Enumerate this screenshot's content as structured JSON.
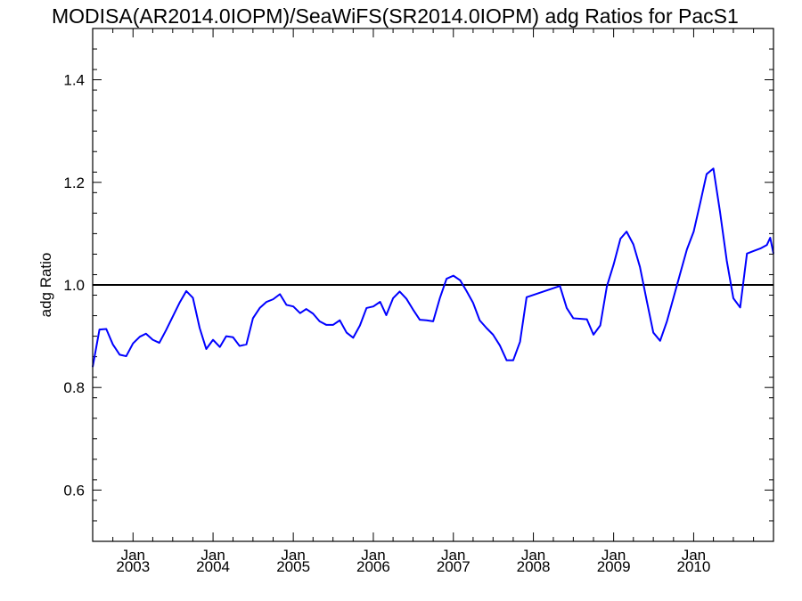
{
  "chart_data": {
    "type": "line",
    "title": "MODISA(AR2014.0IOPM)/SeaWiFS(SR2014.0IOPM)  adg Ratios for PacS1",
    "xlabel": "",
    "ylabel": "adg Ratio",
    "ylim": [
      0.5,
      1.5
    ],
    "xlim": [
      "2002-07-01",
      "2010-12-31"
    ],
    "yticks": [
      "0.6",
      "0.8",
      "1.0",
      "1.2",
      "1.4"
    ],
    "xticks": [
      {
        "month": "Jan",
        "year": "2003",
        "date": "2003-01-01"
      },
      {
        "month": "Jan",
        "year": "2004",
        "date": "2004-01-01"
      },
      {
        "month": "Jan",
        "year": "2005",
        "date": "2005-01-01"
      },
      {
        "month": "Jan",
        "year": "2006",
        "date": "2006-01-01"
      },
      {
        "month": "Jan",
        "year": "2007",
        "date": "2007-01-01"
      },
      {
        "month": "Jan",
        "year": "2008",
        "date": "2008-01-01"
      },
      {
        "month": "Jan",
        "year": "2009",
        "date": "2009-01-01"
      },
      {
        "month": "Jan",
        "year": "2010",
        "date": "2010-01-01"
      }
    ],
    "reference_line": {
      "y": 1.0,
      "color": "#000000"
    },
    "grid": false,
    "series": [
      {
        "color": "#0000ff",
        "points": [
          [
            "2002-07-01",
            0.84
          ],
          [
            "2002-08-01",
            0.913
          ],
          [
            "2002-09-01",
            0.914
          ],
          [
            "2002-10-01",
            0.884
          ],
          [
            "2002-11-01",
            0.864
          ],
          [
            "2002-12-01",
            0.861
          ],
          [
            "2003-01-01",
            0.886
          ],
          [
            "2003-02-01",
            0.899
          ],
          [
            "2003-03-01",
            0.905
          ],
          [
            "2003-04-01",
            0.893
          ],
          [
            "2003-05-01",
            0.887
          ],
          [
            "2003-06-01",
            0.912
          ],
          [
            "2003-07-01",
            0.938
          ],
          [
            "2003-08-01",
            0.965
          ],
          [
            "2003-09-01",
            0.988
          ],
          [
            "2003-10-01",
            0.975
          ],
          [
            "2003-11-01",
            0.916
          ],
          [
            "2003-12-01",
            0.875
          ],
          [
            "2004-01-01",
            0.893
          ],
          [
            "2004-02-01",
            0.879
          ],
          [
            "2004-03-01",
            0.9
          ],
          [
            "2004-04-01",
            0.898
          ],
          [
            "2004-05-01",
            0.881
          ],
          [
            "2004-06-01",
            0.884
          ],
          [
            "2004-07-01",
            0.935
          ],
          [
            "2004-08-01",
            0.955
          ],
          [
            "2004-09-01",
            0.967
          ],
          [
            "2004-10-01",
            0.972
          ],
          [
            "2004-11-01",
            0.982
          ],
          [
            "2004-12-01",
            0.961
          ],
          [
            "2005-01-01",
            0.958
          ],
          [
            "2005-02-01",
            0.945
          ],
          [
            "2005-03-01",
            0.953
          ],
          [
            "2005-04-01",
            0.944
          ],
          [
            "2005-05-01",
            0.929
          ],
          [
            "2005-06-01",
            0.922
          ],
          [
            "2005-07-01",
            0.922
          ],
          [
            "2005-08-01",
            0.931
          ],
          [
            "2005-09-01",
            0.907
          ],
          [
            "2005-10-01",
            0.897
          ],
          [
            "2005-11-01",
            0.921
          ],
          [
            "2005-12-01",
            0.955
          ],
          [
            "2006-01-01",
            0.958
          ],
          [
            "2006-02-01",
            0.967
          ],
          [
            "2006-03-01",
            0.941
          ],
          [
            "2006-04-01",
            0.974
          ],
          [
            "2006-05-01",
            0.987
          ],
          [
            "2006-06-01",
            0.973
          ],
          [
            "2006-07-01",
            0.952
          ],
          [
            "2006-08-01",
            0.932
          ],
          [
            "2006-09-01",
            0.931
          ],
          [
            "2006-10-01",
            0.929
          ],
          [
            "2006-11-01",
            0.975
          ],
          [
            "2006-12-01",
            1.012
          ],
          [
            "2007-01-01",
            1.018
          ],
          [
            "2007-02-01",
            1.009
          ],
          [
            "2007-03-01",
            0.989
          ],
          [
            "2007-04-01",
            0.965
          ],
          [
            "2007-05-01",
            0.931
          ],
          [
            "2007-06-01",
            0.916
          ],
          [
            "2007-07-01",
            0.903
          ],
          [
            "2007-08-01",
            0.882
          ],
          [
            "2007-09-01",
            0.853
          ],
          [
            "2007-10-01",
            0.853
          ],
          [
            "2007-11-01",
            0.889
          ],
          [
            "2007-12-01",
            0.976
          ],
          [
            "2008-05-01",
            0.998
          ],
          [
            "2008-06-01",
            0.955
          ],
          [
            "2008-07-01",
            0.935
          ],
          [
            "2008-09-01",
            0.933
          ],
          [
            "2008-10-01",
            0.903
          ],
          [
            "2008-11-01",
            0.921
          ],
          [
            "2008-12-01",
            0.997
          ],
          [
            "2009-01-01",
            1.04
          ],
          [
            "2009-02-01",
            1.09
          ],
          [
            "2009-03-01",
            1.104
          ],
          [
            "2009-04-01",
            1.079
          ],
          [
            "2009-05-01",
            1.035
          ],
          [
            "2009-06-01",
            0.969
          ],
          [
            "2009-07-01",
            0.907
          ],
          [
            "2009-08-01",
            0.891
          ],
          [
            "2009-09-01",
            0.929
          ],
          [
            "2009-10-01",
            0.975
          ],
          [
            "2009-11-01",
            1.023
          ],
          [
            "2009-12-01",
            1.069
          ],
          [
            "2010-01-01",
            1.104
          ],
          [
            "2010-02-01",
            1.162
          ],
          [
            "2010-03-01",
            1.216
          ],
          [
            "2010-04-01",
            1.227
          ],
          [
            "2010-05-01",
            1.143
          ],
          [
            "2010-06-01",
            1.047
          ],
          [
            "2010-07-01",
            0.974
          ],
          [
            "2010-08-01",
            0.956
          ],
          [
            "2010-09-01",
            1.061
          ],
          [
            "2010-10-01",
            1.066
          ],
          [
            "2010-11-01",
            1.071
          ],
          [
            "2010-12-01",
            1.078
          ],
          [
            "2010-12-16",
            1.092
          ],
          [
            "2010-12-31",
            1.061
          ]
        ]
      }
    ]
  }
}
